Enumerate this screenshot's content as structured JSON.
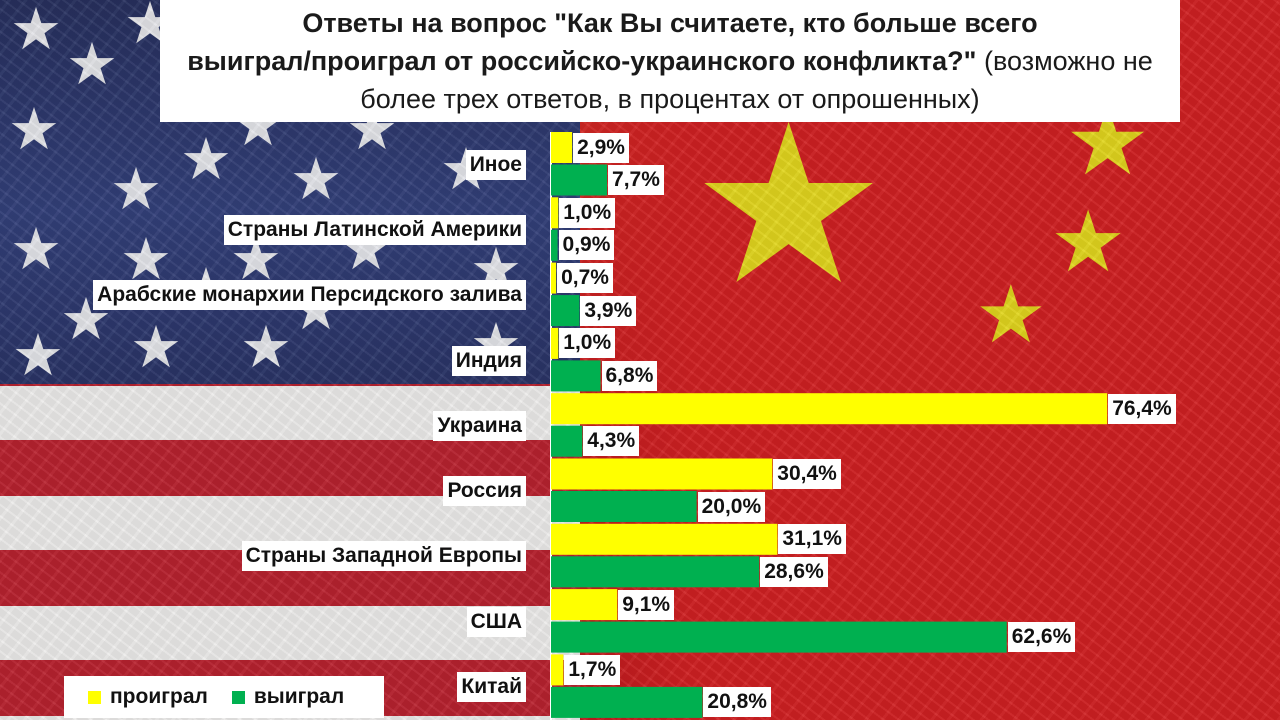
{
  "title": {
    "bold_line_1": "Ответы на вопрос \"Как Вы считаете, кто больше всего",
    "bold_line_2": "выиграл/проиграл от российско-украинского конфликта?\"",
    "normal_tail_1": "(возможно не",
    "normal_line_3": "более трех ответов, в процентах от опрошенных)"
  },
  "colors": {
    "lost": "#ffff00",
    "won": "#00b050"
  },
  "chart_data": {
    "type": "bar",
    "orientation": "horizontal",
    "unit": "%",
    "categories": [
      "Иное",
      "Страны Латинской Америки",
      "Арабские монархии Персидского залива",
      "Индия",
      "Украина",
      "Россия",
      "Страны Западной Европы",
      "США",
      "Китай"
    ],
    "series": [
      {
        "name": "проиграл",
        "color": "#ffff00",
        "values": [
          2.9,
          1.0,
          0.7,
          1.0,
          76.4,
          30.4,
          31.1,
          9.1,
          1.7
        ],
        "labels": [
          "2,9%",
          "1,0%",
          "0,7%",
          "1,0%",
          "76,4%",
          "30,4%",
          "31,1%",
          "9,1%",
          "1,7%"
        ]
      },
      {
        "name": "выиграл",
        "color": "#00b050",
        "values": [
          7.7,
          0.9,
          3.9,
          6.8,
          4.3,
          20.0,
          28.6,
          62.6,
          20.8
        ],
        "labels": [
          "7,7%",
          "0,9%",
          "3,9%",
          "6,8%",
          "4,3%",
          "20,0%",
          "28,6%",
          "62,6%",
          "20,8%"
        ]
      }
    ],
    "legend": {
      "position": "bottom-left",
      "items": [
        "проиграл",
        "выиграл"
      ]
    },
    "grid": false
  }
}
